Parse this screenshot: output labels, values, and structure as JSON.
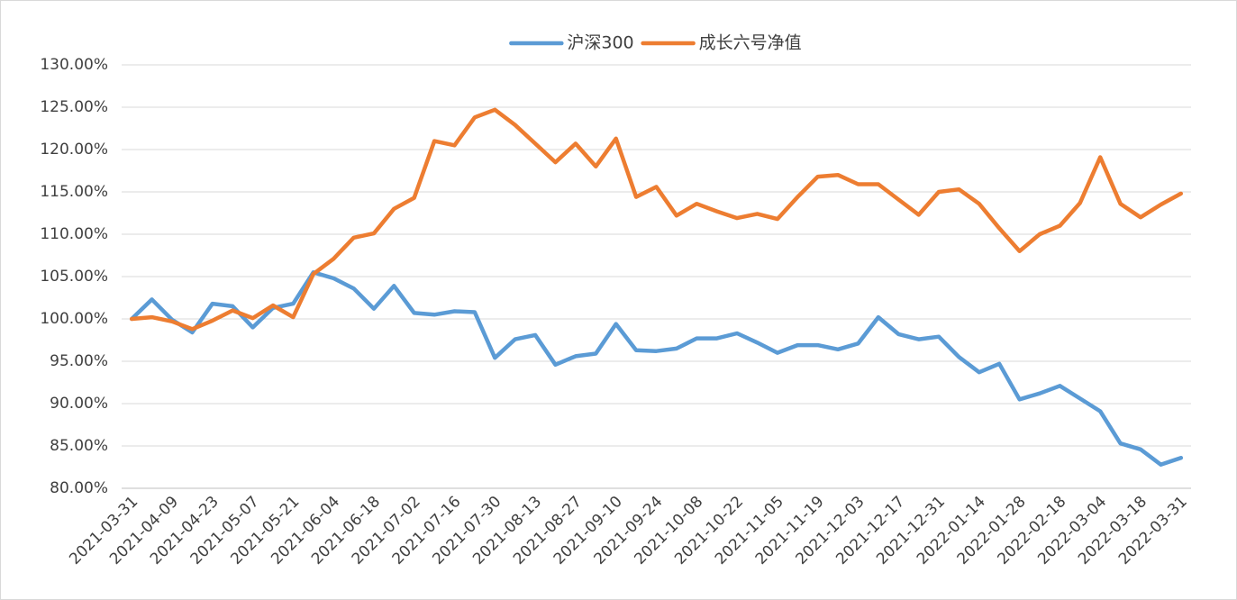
{
  "chart_data": {
    "type": "line",
    "categories": [
      "2021-03-31",
      null,
      "2021-04-09",
      null,
      "2021-04-23",
      null,
      "2021-05-07",
      null,
      "2021-05-21",
      null,
      "2021-06-04",
      null,
      "2021-06-18",
      null,
      "2021-07-02",
      null,
      "2021-07-16",
      null,
      "2021-07-30",
      null,
      "2021-08-13",
      null,
      "2021-08-27",
      null,
      "2021-09-10",
      null,
      "2021-09-24",
      null,
      "2021-10-08",
      null,
      "2021-10-22",
      null,
      "2021-11-05",
      null,
      "2021-11-19",
      null,
      "2021-12-03",
      null,
      "2021-12-17",
      null,
      "2021-12-31",
      null,
      "2022-01-14",
      null,
      "2022-01-28",
      null,
      "2022-02-18",
      null,
      "2022-03-04",
      null,
      "2022-03-18",
      null,
      "2022-03-31"
    ],
    "series": [
      {
        "name": "沪深300",
        "color": "#5b9bd5",
        "values": [
          100.0,
          102.3,
          99.9,
          98.4,
          101.8,
          101.5,
          99.0,
          101.3,
          101.8,
          105.5,
          104.8,
          103.6,
          101.2,
          103.9,
          100.7,
          100.5,
          100.9,
          100.8,
          95.4,
          97.6,
          98.1,
          94.6,
          95.6,
          95.9,
          99.4,
          96.3,
          96.2,
          96.5,
          97.7,
          97.7,
          98.3,
          97.2,
          96.0,
          96.9,
          96.9,
          96.4,
          97.1,
          100.2,
          98.2,
          97.6,
          97.9,
          95.5,
          93.7,
          94.7,
          90.5,
          91.2,
          92.1,
          90.6,
          89.1,
          85.3,
          84.6,
          82.8,
          83.6
        ]
      },
      {
        "name": "成长六号净值",
        "color": "#ed7d31",
        "values": [
          100.0,
          100.2,
          99.7,
          98.8,
          99.8,
          101.0,
          100.1,
          101.6,
          100.2,
          105.3,
          107.1,
          109.6,
          110.1,
          113.0,
          114.3,
          121.0,
          120.5,
          123.8,
          124.7,
          122.9,
          120.7,
          118.5,
          120.7,
          118.0,
          121.3,
          114.4,
          115.6,
          112.2,
          113.6,
          112.7,
          111.9,
          112.4,
          111.8,
          114.4,
          116.8,
          117.0,
          115.9,
          115.9,
          114.1,
          112.3,
          115.0,
          115.3,
          113.6,
          110.7,
          108.0,
          110.0,
          111.0,
          113.7,
          119.1,
          113.6,
          112.0,
          113.5,
          114.8
        ]
      }
    ],
    "ylim": [
      80,
      130
    ],
    "yticks": [
      {
        "value": 80,
        "label": "80.00%"
      },
      {
        "value": 85,
        "label": "85.00%"
      },
      {
        "value": 90,
        "label": "90.00%"
      },
      {
        "value": 95,
        "label": "95.00%"
      },
      {
        "value": 100,
        "label": "100.00%"
      },
      {
        "value": 105,
        "label": "105.00%"
      },
      {
        "value": 110,
        "label": "110.00%"
      },
      {
        "value": 115,
        "label": "115.00%"
      },
      {
        "value": 120,
        "label": "120.00%"
      },
      {
        "value": 125,
        "label": "125.00%"
      },
      {
        "value": 130,
        "label": "130.00%"
      }
    ],
    "grid": true,
    "legend": "top"
  }
}
